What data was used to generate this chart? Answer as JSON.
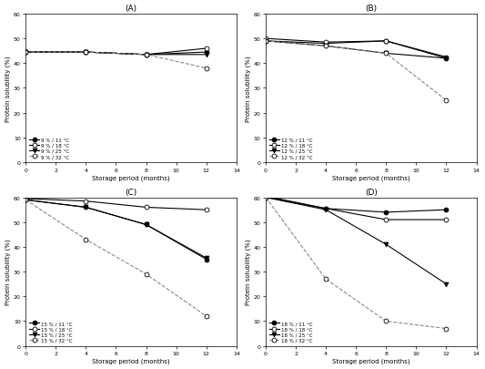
{
  "panels": [
    {
      "label": "(A)",
      "x": [
        0,
        4,
        8,
        12
      ],
      "series": [
        {
          "label": "9 % / 11 °C",
          "y": [
            44.5,
            44.5,
            43.5,
            44.5
          ],
          "marker": "o",
          "filled": true,
          "linestyle": "-",
          "color": "black"
        },
        {
          "label": "9 % / 18 °C",
          "y": [
            44.5,
            44.5,
            43.5,
            46.0
          ],
          "marker": "o",
          "filled": false,
          "linestyle": "-",
          "color": "black"
        },
        {
          "label": "9 % / 25 °C",
          "y": [
            44.5,
            44.5,
            43.5,
            43.5
          ],
          "marker": "v",
          "filled": true,
          "linestyle": "-",
          "color": "black"
        },
        {
          "label": "9 % / 32 °C",
          "y": [
            44.5,
            44.5,
            43.5,
            38.0
          ],
          "marker": "o",
          "filled": false,
          "linestyle": "--",
          "color": "black"
        }
      ],
      "ylabel": "Protein solubility (%)",
      "xlabel": "Storage period (months)",
      "ylim": [
        0,
        60
      ],
      "yticks": [
        0,
        10,
        20,
        30,
        40,
        50,
        60
      ],
      "xlim": [
        0,
        14
      ],
      "xticks": [
        0,
        2,
        4,
        6,
        8,
        10,
        12,
        14
      ]
    },
    {
      "label": "(B)",
      "x": [
        0,
        4,
        8,
        12
      ],
      "series": [
        {
          "label": "12 % / 11 °C",
          "y": [
            49.0,
            48.0,
            49.0,
            42.0
          ],
          "marker": "o",
          "filled": true,
          "linestyle": "-",
          "color": "black"
        },
        {
          "label": "12 % / 18 °C",
          "y": [
            50.0,
            48.5,
            49.0,
            42.5
          ],
          "marker": "o",
          "filled": false,
          "linestyle": "-",
          "color": "black"
        },
        {
          "label": "12 % / 25 °C",
          "y": [
            49.0,
            47.0,
            44.0,
            42.0
          ],
          "marker": "v",
          "filled": true,
          "linestyle": "-",
          "color": "black"
        },
        {
          "label": "12 % / 32 °C",
          "y": [
            49.0,
            47.0,
            44.0,
            25.0
          ],
          "marker": "o",
          "filled": false,
          "linestyle": "--",
          "color": "black"
        }
      ],
      "ylabel": "Protein solubility (%)",
      "xlabel": "Storage period (months)",
      "ylim": [
        0,
        60
      ],
      "yticks": [
        0,
        10,
        20,
        30,
        40,
        50,
        60
      ],
      "xlim": [
        0,
        14
      ],
      "xticks": [
        0,
        2,
        4,
        6,
        8,
        10,
        12,
        14
      ]
    },
    {
      "label": "(C)",
      "x": [
        0,
        4,
        8,
        12
      ],
      "series": [
        {
          "label": "15 % / 11 °C",
          "y": [
            59.0,
            56.0,
            49.0,
            35.0
          ],
          "marker": "o",
          "filled": true,
          "linestyle": "-",
          "color": "black"
        },
        {
          "label": "15 % / 18 °C",
          "y": [
            59.5,
            58.5,
            56.0,
            55.0
          ],
          "marker": "o",
          "filled": false,
          "linestyle": "-",
          "color": "black"
        },
        {
          "label": "15 % / 25 °C",
          "y": [
            59.0,
            56.0,
            49.0,
            35.5
          ],
          "marker": "v",
          "filled": true,
          "linestyle": "-",
          "color": "black"
        },
        {
          "label": "15 % / 32 °C",
          "y": [
            59.0,
            43.0,
            29.0,
            12.0
          ],
          "marker": "o",
          "filled": false,
          "linestyle": "--",
          "color": "black"
        }
      ],
      "ylabel": "Protein solubility (%)",
      "xlabel": "Storage period (months)",
      "ylim": [
        0,
        60
      ],
      "yticks": [
        0,
        10,
        20,
        30,
        40,
        50,
        60
      ],
      "xlim": [
        0,
        14
      ],
      "xticks": [
        0,
        2,
        4,
        6,
        8,
        10,
        12,
        14
      ]
    },
    {
      "label": "(D)",
      "x": [
        0,
        4,
        8,
        12
      ],
      "series": [
        {
          "label": "18 % / 11 °C",
          "y": [
            60.0,
            55.5,
            54.0,
            55.0
          ],
          "marker": "o",
          "filled": true,
          "linestyle": "-",
          "color": "black"
        },
        {
          "label": "18 % / 18 °C",
          "y": [
            60.5,
            55.5,
            51.0,
            51.0
          ],
          "marker": "o",
          "filled": false,
          "linestyle": "-",
          "color": "black"
        },
        {
          "label": "18 % / 25 °C",
          "y": [
            60.0,
            55.0,
            41.0,
            25.0
          ],
          "marker": "v",
          "filled": true,
          "linestyle": "-",
          "color": "black"
        },
        {
          "label": "18 % / 32 °C",
          "y": [
            60.0,
            27.0,
            10.0,
            7.0
          ],
          "marker": "o",
          "filled": false,
          "linestyle": "--",
          "color": "black"
        }
      ],
      "ylabel": "Protein solubility (%)",
      "xlabel": "Storage period (months)",
      "ylim": [
        0,
        60
      ],
      "yticks": [
        0,
        10,
        20,
        30,
        40,
        50,
        60
      ],
      "xlim": [
        0,
        14
      ],
      "xticks": [
        0,
        2,
        4,
        6,
        8,
        10,
        12,
        14
      ]
    }
  ],
  "figure_size": [
    5.33,
    4.06
  ],
  "dpi": 100
}
